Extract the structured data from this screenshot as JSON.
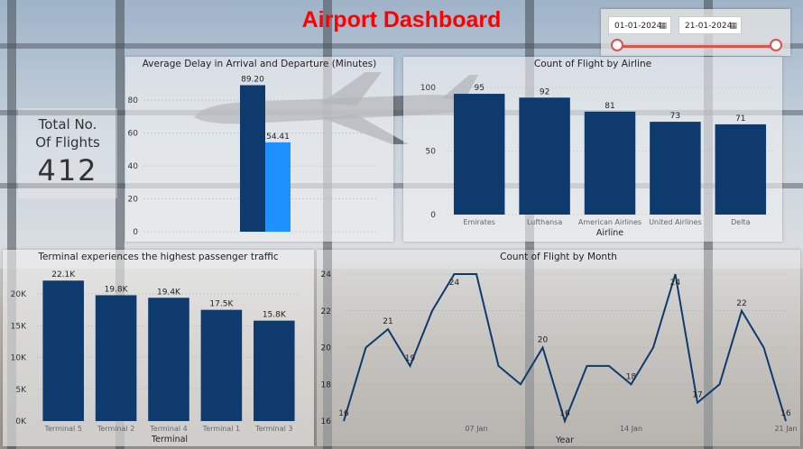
{
  "dashboard": {
    "title": "Airport Dashboard"
  },
  "date_filter": {
    "start": "01-01-2024",
    "end": "21-01-2024",
    "calendar_icon": "calendar-icon"
  },
  "kpi": {
    "label_line1": "Total No.",
    "label_line2": "Of Flights",
    "value": "412"
  },
  "colors": {
    "dark_bar": "#0e3a6e",
    "light_bar": "#1e90ff",
    "title": "#ff0000",
    "line": "#0e3a6e"
  },
  "chart_data": [
    {
      "id": "delay",
      "type": "bar",
      "title": "Average Delay in Arrival and Departure (Minutes)",
      "series": [
        {
          "values": [
            89.2
          ],
          "labels": [
            "89.20"
          ]
        },
        {
          "values": [
            54.41
          ],
          "labels": [
            "54.41"
          ]
        }
      ],
      "ylim": [
        0,
        90
      ],
      "yticks": [
        "0",
        "20",
        "40",
        "60",
        "80"
      ],
      "ytick_values": [
        0,
        20,
        40,
        60,
        80
      ]
    },
    {
      "id": "airline",
      "type": "bar",
      "title": "Count of Flight by Airline",
      "xlabel": "Airline",
      "categories": [
        "Emirates",
        "Lufthansa",
        "American Airlines",
        "United Airlines",
        "Delta"
      ],
      "values": [
        95,
        92,
        81,
        73,
        71
      ],
      "labels": [
        "95",
        "92",
        "81",
        "73",
        "71"
      ],
      "ylim": [
        0,
        100
      ],
      "yticks": [
        "0",
        "50",
        "100"
      ],
      "ytick_values": [
        0,
        50,
        100
      ]
    },
    {
      "id": "terminal",
      "type": "bar",
      "title": "Terminal experiences the highest passenger traffic",
      "xlabel": "Terminal",
      "categories": [
        "Terminal 5",
        "Terminal 2",
        "Terminal 4",
        "Terminal 1",
        "Terminal 3"
      ],
      "values": [
        22100,
        19800,
        19400,
        17500,
        15800
      ],
      "labels": [
        "22.1K",
        "19.8K",
        "19.4K",
        "17.5K",
        "15.8K"
      ],
      "ylim": [
        0,
        22700
      ],
      "yticks": [
        "0K",
        "5K",
        "10K",
        "15K",
        "20K"
      ],
      "ytick_values": [
        0,
        5000,
        10000,
        15000,
        20000
      ]
    },
    {
      "id": "month",
      "type": "line",
      "title": "Count of Flight by Month",
      "xlabel": "Year",
      "x": [
        "2024-01-01",
        "2024-01-02",
        "2024-01-03",
        "2024-01-04",
        "2024-01-05",
        "2024-01-06",
        "2024-01-07",
        "2024-01-08",
        "2024-01-09",
        "2024-01-10",
        "2024-01-11",
        "2024-01-12",
        "2024-01-13",
        "2024-01-14",
        "2024-01-15",
        "2024-01-16",
        "2024-01-17",
        "2024-01-18",
        "2024-01-19",
        "2024-01-20",
        "2024-01-21"
      ],
      "values": [
        16,
        20,
        21,
        19,
        22,
        24,
        24,
        19,
        18,
        20,
        16,
        19,
        19,
        18,
        20,
        24,
        17,
        18,
        22,
        20,
        16
      ],
      "point_labels": {
        "0": "16",
        "2": "21",
        "3": "19",
        "5": "24",
        "9": "20",
        "10": "16",
        "13": "18",
        "15": "24",
        "16": "17",
        "18": "22",
        "20": "16"
      },
      "xticks": [
        "07 Jan",
        "14 Jan",
        "21 Jan"
      ],
      "xtick_index": [
        6,
        13,
        20
      ],
      "ylim": [
        16,
        24
      ],
      "yticks": [
        "16",
        "18",
        "20",
        "22",
        "24"
      ],
      "ytick_values": [
        16,
        18,
        20,
        22,
        24
      ]
    }
  ]
}
